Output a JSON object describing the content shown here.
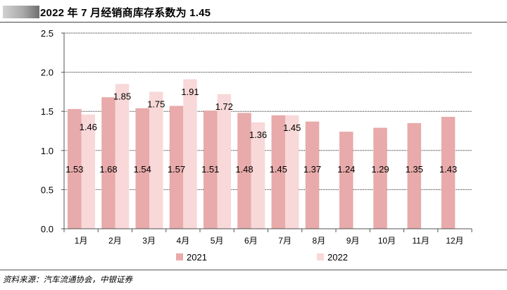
{
  "header": {
    "title": "2022 年 7 月经销商库存系数为 1.45"
  },
  "footer": {
    "source": "资料来源：汽车流通协会，中银证券"
  },
  "colors": {
    "series_2021": "#e8aaaa",
    "series_2022": "#f8d8d8",
    "axis": "#555555",
    "grid": "#222222"
  },
  "chart_data": {
    "type": "bar",
    "title": "2022 年 7 月经销商库存系数为 1.45",
    "xlabel": "",
    "ylabel": "",
    "categories": [
      "1月",
      "2月",
      "3月",
      "4月",
      "5月",
      "6月",
      "7月",
      "8月",
      "9月",
      "10月",
      "11月",
      "12月"
    ],
    "series": [
      {
        "name": "2021",
        "values": [
          1.53,
          1.68,
          1.54,
          1.57,
          1.51,
          1.48,
          1.45,
          1.37,
          1.24,
          1.29,
          1.35,
          1.43
        ]
      },
      {
        "name": "2022",
        "values": [
          1.46,
          1.85,
          1.75,
          1.91,
          1.72,
          1.36,
          1.45,
          null,
          null,
          null,
          null,
          null
        ]
      }
    ],
    "ylim": [
      0,
      2.5
    ],
    "yticks": [
      0.0,
      0.5,
      1.0,
      1.5,
      2.0,
      2.5
    ],
    "ytick_labels": [
      "0.0",
      "0.5",
      "1.0",
      "1.5",
      "2.0",
      "2.5"
    ],
    "grid": true,
    "legend": "bottom-center"
  }
}
